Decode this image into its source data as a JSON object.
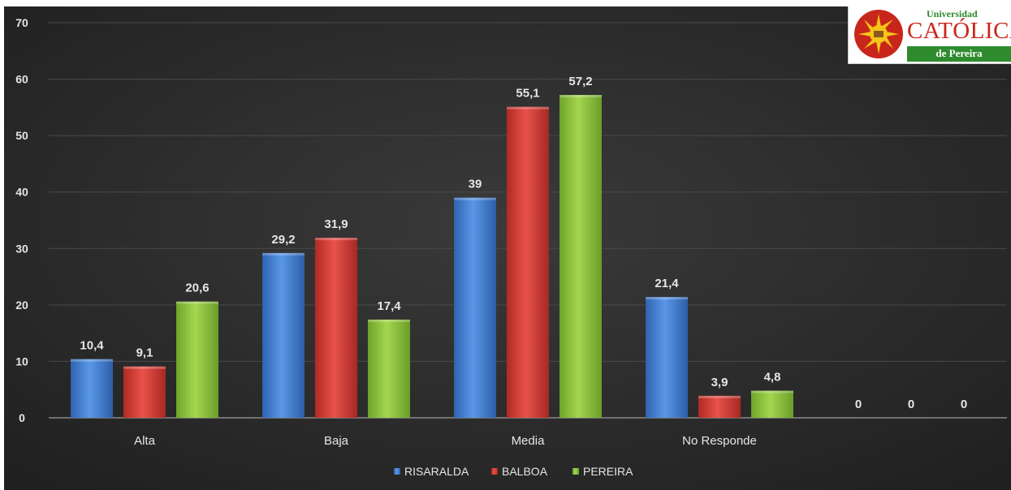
{
  "chart_data": {
    "type": "bar",
    "categories": [
      "Alta",
      "Baja",
      "Media",
      "No Responde",
      ""
    ],
    "series": [
      {
        "name": "RISARALDA",
        "values": [
          10.4,
          29.2,
          39,
          21.4,
          0
        ],
        "labels": [
          "10,4",
          "29,2",
          "39",
          "21,4",
          "0"
        ]
      },
      {
        "name": "BALBOA",
        "values": [
          9.1,
          31.9,
          55.1,
          3.9,
          0
        ],
        "labels": [
          "9,1",
          "31,9",
          "55,1",
          "3,9",
          "0"
        ]
      },
      {
        "name": "PEREIRA",
        "values": [
          20.6,
          17.4,
          57.2,
          4.8,
          0
        ],
        "labels": [
          "20,6",
          "17,4",
          "57,2",
          "4,8",
          "0"
        ]
      }
    ],
    "yticks": [
      "0",
      "10",
      "20",
      "30",
      "40",
      "50",
      "60",
      "70"
    ],
    "ylim": [
      0,
      70
    ],
    "grid": true,
    "legend_position": "bottom-center",
    "colors": {
      "RISARALDA": "#3f7fd6",
      "BALBOA": "#d63b34",
      "PEREIRA": "#8cc43a",
      "background": "#2e2e2e",
      "text": "#e6e6e6"
    }
  },
  "logo": {
    "line1": "Universidad",
    "line2": "CATÓLICA",
    "line3": "de Pereira"
  }
}
